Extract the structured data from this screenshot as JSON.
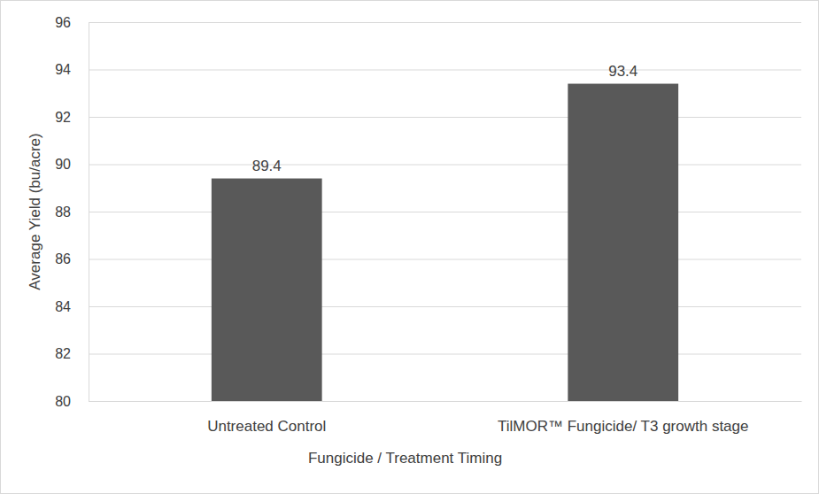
{
  "chart_data": {
    "type": "bar",
    "x_label": "Fungicide / Treatment Timing",
    "y_label": "Average Yield (bu/acre)",
    "categories": [
      "Untreated Control",
      "TilMOR™ Fungicide/ T3 growth stage"
    ],
    "values": [
      89.4,
      93.4
    ],
    "color": "#595959",
    "ylim": [
      80,
      96
    ],
    "yticks": [
      80,
      82,
      84,
      86,
      88,
      90,
      92,
      94,
      96
    ],
    "grid": true,
    "data_labels": true
  }
}
